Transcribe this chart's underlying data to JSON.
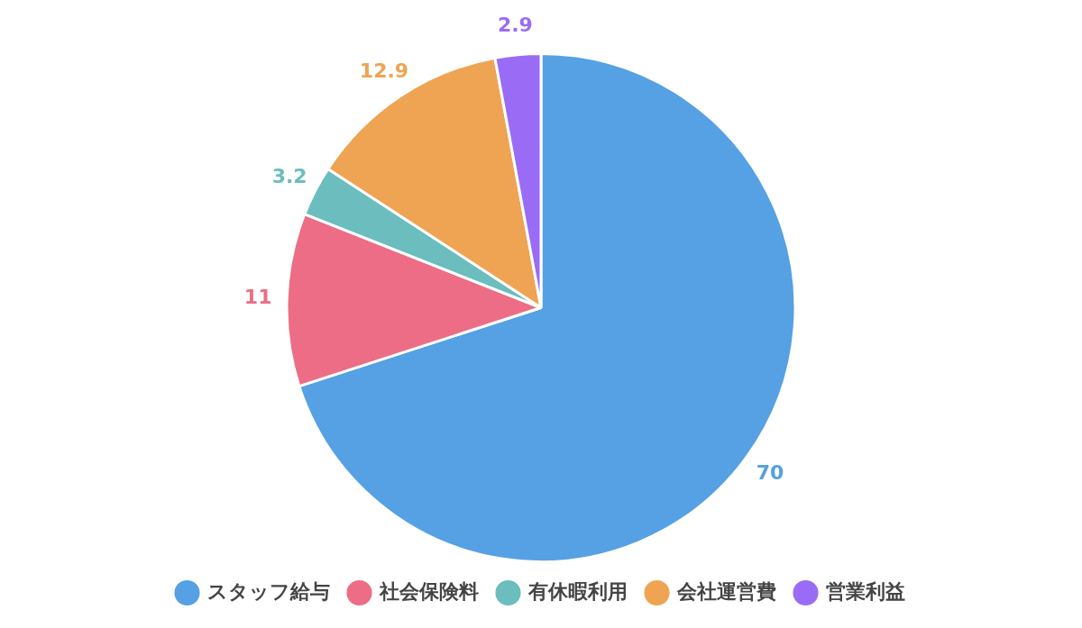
{
  "chart_data": {
    "type": "pie",
    "categories": [
      "スタッフ給与",
      "社会保険料",
      "有休暇利用",
      "会社運営費",
      "営業利益"
    ],
    "values": [
      70,
      11,
      3.2,
      12.9,
      2.9
    ],
    "colors": [
      "#56a0e4",
      "#ec6d85",
      "#6bbdbe",
      "#eea453",
      "#9a6cf5"
    ],
    "data_labels": true,
    "legend": "bottom"
  }
}
